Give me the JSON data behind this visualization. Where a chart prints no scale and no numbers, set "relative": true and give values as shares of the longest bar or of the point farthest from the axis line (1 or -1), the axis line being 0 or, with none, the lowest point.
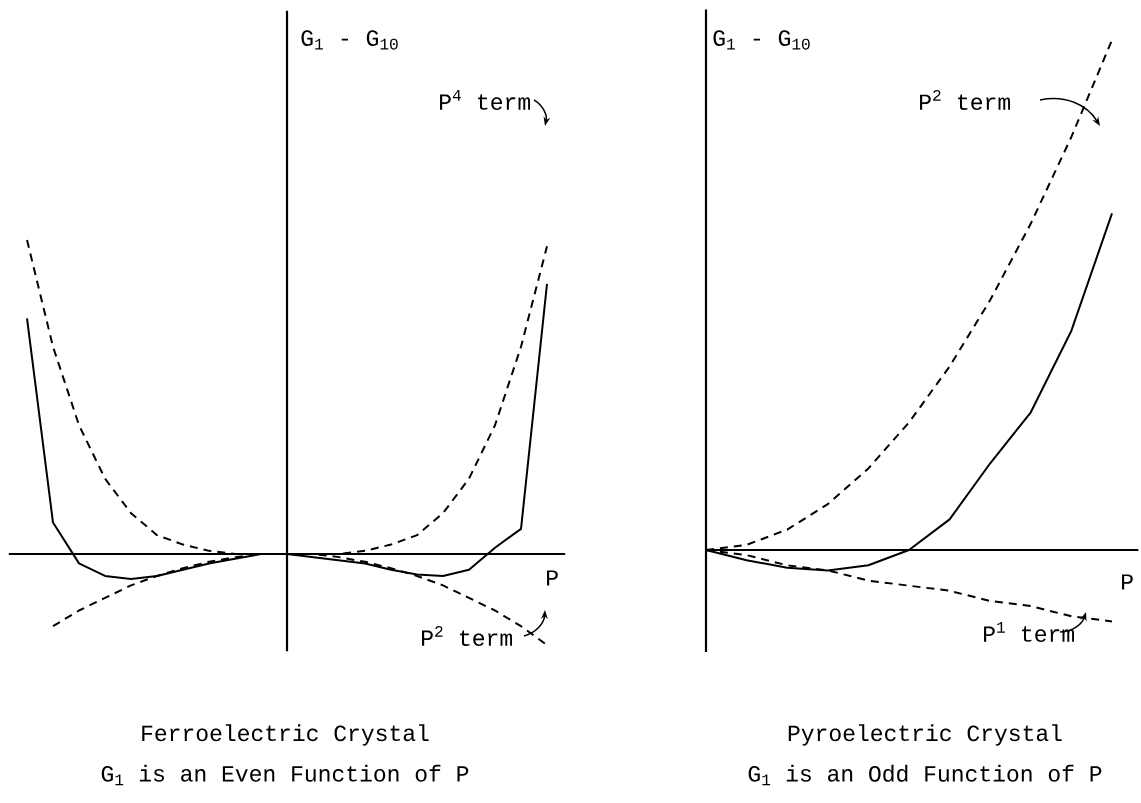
{
  "chart_data": [
    {
      "type": "line",
      "relative": true,
      "title": "Ferroelectric Crystal",
      "subtitle": "G$_{1}$ is an Even Function of P",
      "ylabel": "G$_{1}$ - G$_{10}$",
      "xlabel": "P",
      "categories": [
        null,
        null,
        null,
        null,
        null,
        null,
        null,
        null,
        null,
        null,
        null,
        null,
        null,
        null,
        null,
        null,
        null,
        null,
        null,
        null,
        null
      ],
      "series": [
        {
          "color": "#000000",
          "line_style": "solid",
          "values": [
            0.75,
            0.1,
            -0.03,
            -0.07,
            -0.08,
            -0.07,
            -0.05,
            -0.03,
            -0.015,
            0,
            0,
            -0.01,
            -0.02,
            -0.03,
            -0.05,
            -0.065,
            -0.07,
            -0.05,
            0.02,
            0.08,
            0.86
          ]
        },
        {
          "color": "#000000",
          "line_style": "dashed",
          "values": [
            1.0,
            0.66,
            0.41,
            0.24,
            0.13,
            0.06,
            0.03,
            0.01,
            0,
            0,
            0,
            0,
            0,
            0.01,
            0.03,
            0.06,
            0.13,
            0.24,
            0.41,
            0.66,
            0.98
          ]
        },
        {
          "color": "#000000",
          "line_style": "dashed",
          "values": [
            null,
            -0.23,
            -0.18,
            -0.14,
            -0.1,
            -0.07,
            -0.045,
            -0.025,
            -0.01,
            0,
            0,
            0,
            -0.01,
            -0.025,
            -0.045,
            -0.07,
            -0.1,
            -0.14,
            -0.18,
            -0.23,
            -0.29
          ]
        }
      ],
      "annotations": [
        "P$^{4}$ term",
        "P$^{2}$ term"
      ]
    },
    {
      "type": "line",
      "relative": true,
      "title": "Pyroelectric Crystal",
      "subtitle": "G$_{1}$ is an Odd Function of P",
      "ylabel": "G$_{1}$ - G$_{10}$",
      "xlabel": "P",
      "categories": [
        null,
        null,
        null,
        null,
        null,
        null,
        null,
        null,
        null,
        null,
        null
      ],
      "series": [
        {
          "color": "#000000",
          "line_style": "solid",
          "values": [
            0,
            -0.02,
            -0.035,
            -0.04,
            -0.03,
            0,
            0.06,
            0.17,
            0.27,
            0.43,
            0.66
          ]
        },
        {
          "color": "#000000",
          "line_style": "dashed",
          "values": [
            0,
            0.01,
            0.04,
            0.09,
            0.16,
            0.25,
            0.36,
            0.49,
            0.64,
            0.81,
            1.0
          ]
        },
        {
          "color": "#000000",
          "line_style": "dashed",
          "values": [
            0,
            -0.01,
            -0.03,
            -0.04,
            -0.06,
            -0.07,
            -0.08,
            -0.1,
            -0.11,
            -0.13,
            -0.14
          ]
        }
      ],
      "annotations": [
        "P$^{2}$ term",
        "P$^{1}$ term"
      ]
    }
  ]
}
